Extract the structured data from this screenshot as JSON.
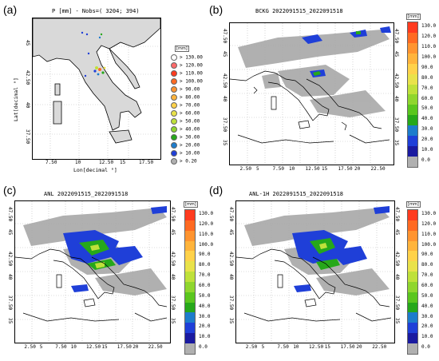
{
  "panels": {
    "a": {
      "label": "(a)",
      "title": "P [mm] - Nobs=( 3204;  394)",
      "xlabel": "Lon[decimal °]",
      "ylabel": "Lat[decimal °]",
      "xticks": [
        "7.50",
        "10",
        "12.50",
        "15",
        "17.50"
      ],
      "yticks": [
        "45",
        "42.50",
        "40",
        "37.50"
      ]
    },
    "b": {
      "label": "(b)",
      "title": "BCKG 2022091515_2022091518",
      "xticks": [
        "2.50",
        "5",
        "7.50",
        "10",
        "12.50",
        "15",
        "17.50",
        "20",
        "22.50"
      ],
      "yticks": [
        "47.50",
        "45",
        "42.50",
        "40",
        "37.50",
        "35"
      ]
    },
    "c": {
      "label": "(c)",
      "title": "ANL 2022091515_2022091518",
      "xticks": [
        "2.50",
        "5",
        "7.50",
        "10",
        "12.50",
        "15",
        "17.50",
        "20",
        "22.50"
      ],
      "yticks": [
        "47.50",
        "45",
        "42.50",
        "40",
        "37.50",
        "35"
      ]
    },
    "d": {
      "label": "(d)",
      "title": "ANL-1H 2022091515_2022091518",
      "xticks": [
        "2.50",
        "5",
        "7.50",
        "10",
        "12.50",
        "15",
        "17.50",
        "20",
        "22.50"
      ],
      "yticks": [
        "47.50",
        "45",
        "42.50",
        "40",
        "37.50",
        "35"
      ]
    }
  },
  "colorbar": {
    "unit": "[mm]",
    "labels": [
      "130.0",
      "120.0",
      "110.0",
      "100.0",
      "90.0",
      "80.0",
      "70.0",
      "60.0",
      "50.0",
      "40.0",
      "30.0",
      "20.0",
      "10.0",
      "0.0"
    ],
    "colors": [
      "#ff3b1f",
      "#ff6a22",
      "#ff9430",
      "#ffb43c",
      "#ffd24a",
      "#e9e24a",
      "#bfe13a",
      "#8fd62e",
      "#5ac61e",
      "#26a81a",
      "#1d7ccc",
      "#1f3fd8",
      "#1a1aa0",
      "#b0b0b0"
    ]
  },
  "legend_a": {
    "unit": "[mm]",
    "rows": [
      {
        "sym": ">",
        "value": "130.00",
        "color": "#ffffff"
      },
      {
        "sym": ">",
        "value": "120.00",
        "color": "#ff6a6a"
      },
      {
        "sym": ">",
        "value": "110.00",
        "color": "#ff3b1f"
      },
      {
        "sym": ">",
        "value": "100.00",
        "color": "#ff6a22"
      },
      {
        "sym": ">",
        "value": "90.00",
        "color": "#ff9430"
      },
      {
        "sym": ">",
        "value": "80.00",
        "color": "#ffb43c"
      },
      {
        "sym": ">",
        "value": "70.00",
        "color": "#ffd24a"
      },
      {
        "sym": ">",
        "value": "60.00",
        "color": "#e9e24a"
      },
      {
        "sym": ">",
        "value": "50.00",
        "color": "#bfe13a"
      },
      {
        "sym": ">",
        "value": "40.00",
        "color": "#8fd62e"
      },
      {
        "sym": ">",
        "value": "30.00",
        "color": "#26a81a"
      },
      {
        "sym": ">",
        "value": "20.00",
        "color": "#1d7ccc"
      },
      {
        "sym": ">",
        "value": "10.00",
        "color": "#1f3fd8"
      },
      {
        "sym": ">",
        "value": "0.20",
        "color": "#b0b0b0"
      }
    ]
  },
  "chart_data": [
    {
      "type": "heatmap",
      "panel": "a",
      "title": "P [mm] - Nobs=( 3204;  394)",
      "xlabel": "Lon[decimal °]",
      "ylabel": "Lat[decimal °]",
      "xlim": [
        6,
        19
      ],
      "ylim": [
        36,
        47.5
      ],
      "legend": "right"
    },
    {
      "type": "heatmap",
      "panel": "b",
      "title": "BCKG 2022091515_2022091518",
      "xlim": [
        0,
        24
      ],
      "ylim": [
        34.5,
        48.5
      ],
      "colorbar_range": [
        0,
        130
      ]
    },
    {
      "type": "heatmap",
      "panel": "c",
      "title": "ANL 2022091515_2022091518",
      "xlim": [
        0,
        24
      ],
      "ylim": [
        34.5,
        48.5
      ],
      "colorbar_range": [
        0,
        130
      ]
    },
    {
      "type": "heatmap",
      "panel": "d",
      "title": "ANL-1H 2022091515_2022091518",
      "xlim": [
        0,
        24
      ],
      "ylim": [
        34.5,
        48.5
      ],
      "colorbar_range": [
        0,
        130
      ]
    }
  ]
}
